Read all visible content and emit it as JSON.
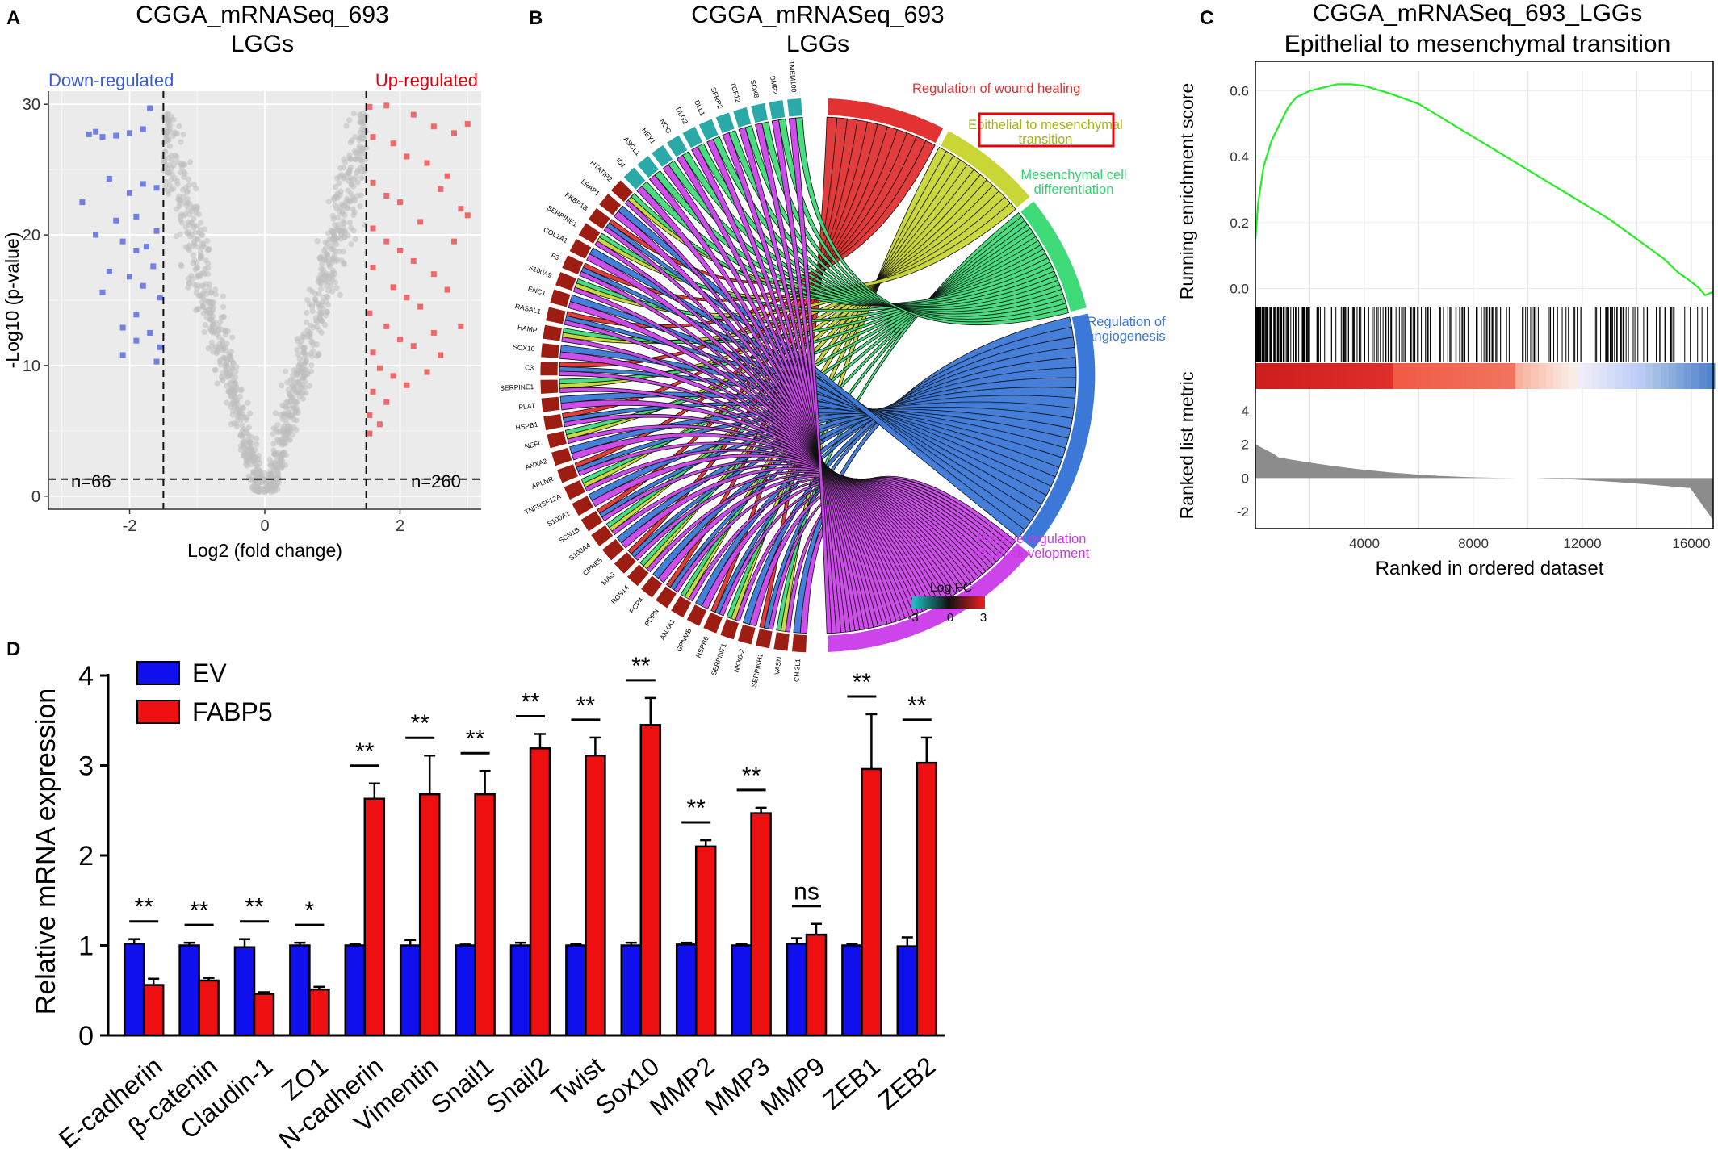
{
  "panels": {
    "A": {
      "letter": "A",
      "title_line1": "CGGA_mRNASeq_693",
      "title_line2": "LGGs",
      "down_label": "Down-regulated",
      "up_label": "Up-regulated",
      "n_down": "n=66",
      "n_up": "n=260",
      "colors": {
        "down": "#5b6ce0",
        "up": "#f0484a",
        "ns": "#bdbdbd",
        "background": "#ebebeb"
      }
    },
    "B": {
      "letter": "B",
      "title_line1": "CGGA_mRNASeq_693",
      "title_line2": "LGGs",
      "legend_title": "Log FC",
      "legend_ticks": [
        "-3",
        "0",
        "3"
      ],
      "highlight_color": "#e8000b"
    },
    "C": {
      "letter": "C",
      "title_line1": "CGGA_mRNASeq_693_LGGs",
      "title_line2": "Epithelial to mesenchymal transition",
      "curve_color": "#22ee22"
    },
    "D": {
      "letter": "D",
      "colors": {
        "EV": "#1010ee",
        "FABP5": "#ee1010"
      }
    }
  },
  "chart_data": [
    {
      "panel": "A",
      "type": "scatter",
      "xlabel": "Log2 (fold change)",
      "ylabel": "-Log10 (p-value)",
      "xlim": [
        -3.2,
        3.2
      ],
      "ylim": [
        -1,
        31
      ],
      "xticks": [
        -2,
        0,
        2
      ],
      "yticks": [
        0,
        10,
        20,
        30
      ],
      "thresholds": {
        "log2fc": [
          -1.5,
          1.5
        ],
        "neg_log10_p": 1.3
      },
      "grid": true,
      "counts": {
        "down": 66,
        "up": 260
      },
      "series": [
        {
          "name": "Down-regulated",
          "points": [
            [
              -2.6,
              27.7
            ],
            [
              -2.5,
              27.9
            ],
            [
              -2.4,
              27.5
            ],
            [
              -2.2,
              27.6
            ],
            [
              -2.0,
              27.8
            ],
            [
              -1.8,
              28.1
            ],
            [
              -1.7,
              29.7
            ],
            [
              -2.7,
              22.5
            ],
            [
              -2.3,
              24.3
            ],
            [
              -2.2,
              21.1
            ],
            [
              -2.0,
              23.2
            ],
            [
              -1.9,
              21.4
            ],
            [
              -1.8,
              23.9
            ],
            [
              -1.6,
              23.6
            ],
            [
              -2.5,
              20.0
            ],
            [
              -2.1,
              19.5
            ],
            [
              -1.9,
              18.8
            ],
            [
              -1.75,
              19.1
            ],
            [
              -1.6,
              20.3
            ],
            [
              -2.4,
              15.6
            ],
            [
              -2.3,
              17.2
            ],
            [
              -2.0,
              16.8
            ],
            [
              -1.8,
              16.1
            ],
            [
              -1.65,
              17.6
            ],
            [
              -1.55,
              15.2
            ],
            [
              -2.1,
              12.9
            ],
            [
              -1.9,
              13.9
            ],
            [
              -1.7,
              12.5
            ],
            [
              -1.55,
              11.4
            ],
            [
              -2.1,
              10.8
            ],
            [
              -1.9,
              11.9
            ],
            [
              -1.6,
              10.3
            ]
          ]
        },
        {
          "name": "Up-regulated",
          "points": [
            [
              1.55,
              29.8
            ],
            [
              1.8,
              29.9
            ],
            [
              2.2,
              29.2
            ],
            [
              2.5,
              28.3
            ],
            [
              2.8,
              27.8
            ],
            [
              3.0,
              28.5
            ],
            [
              1.6,
              27.5
            ],
            [
              1.9,
              27.0
            ],
            [
              2.1,
              26.0
            ],
            [
              2.4,
              25.5
            ],
            [
              2.7,
              24.5
            ],
            [
              1.6,
              24.0
            ],
            [
              1.8,
              23.0
            ],
            [
              2.0,
              22.5
            ],
            [
              2.3,
              21.0
            ],
            [
              2.6,
              23.5
            ],
            [
              2.9,
              22.0
            ],
            [
              1.6,
              20.5
            ],
            [
              1.8,
              19.5
            ],
            [
              2.0,
              18.8
            ],
            [
              2.2,
              18.0
            ],
            [
              2.5,
              17.0
            ],
            [
              2.8,
              19.5
            ],
            [
              1.6,
              17.5
            ],
            [
              1.9,
              16.0
            ],
            [
              2.1,
              15.2
            ],
            [
              2.3,
              14.5
            ],
            [
              1.55,
              14.0
            ],
            [
              1.8,
              13.0
            ],
            [
              2.0,
              12.0
            ],
            [
              2.2,
              11.5
            ],
            [
              2.5,
              12.5
            ],
            [
              1.6,
              11.0
            ],
            [
              1.7,
              9.8
            ],
            [
              1.9,
              9.2
            ],
            [
              2.1,
              8.5
            ],
            [
              1.6,
              8.0
            ],
            [
              1.8,
              7.2
            ],
            [
              1.55,
              6.2
            ],
            [
              1.7,
              5.5
            ],
            [
              1.55,
              4.8
            ],
            [
              2.4,
              9.5
            ],
            [
              2.6,
              10.8
            ],
            [
              2.9,
              13.0
            ],
            [
              2.7,
              15.8
            ],
            [
              3.0,
              21.5
            ]
          ]
        }
      ]
    },
    {
      "panel": "B",
      "type": "chord",
      "genes": [
        "CHI3L1",
        "VASN",
        "SERPINH1",
        "NKX6-2",
        "SERPINF1",
        "HSPB6",
        "GPNMB",
        "ANXA1",
        "PDPN",
        "PCP4",
        "RGS14",
        "MAG",
        "CPNE5",
        "S100A4",
        "SCN1B",
        "S100A1",
        "TNFRSF12A",
        "APLNR",
        "ANXA2",
        "NEFL",
        "HSPB1",
        "PLAT",
        "SERPINE1",
        "C3",
        "SOX10",
        "HAMP",
        "RASAL1",
        "ENC1",
        "S100A9",
        "F3",
        "COL1A1",
        "SERPINE1",
        "FKBP1B",
        "LRAP1",
        "HTATIP2",
        "ID1",
        "ASCL1",
        "HEY1",
        "NOG",
        "DLG2",
        "DLL1",
        "SFRP2",
        "TCF12",
        "SOX8",
        "BMP2",
        "TMEM100"
      ],
      "terms": [
        {
          "name": "Regulation of wound healing",
          "color": "#e23232"
        },
        {
          "name": "Epithelial to mesenchymal transition",
          "color": "#c9d636",
          "highlighted": true
        },
        {
          "name": "Mesenchymal cell differentiation",
          "color": "#3fdb79"
        },
        {
          "name": "Regulation of angiogenesis",
          "color": "#3b78d8"
        },
        {
          "name": "Positive regulation of cell development",
          "color": "#cc44ea"
        }
      ],
      "legend": {
        "title": "Log FC",
        "range": [
          -3,
          3
        ]
      }
    },
    {
      "panel": "C",
      "type": "line",
      "title": "CGGA_mRNASeq_693_LGGs",
      "subtitle": "Epithelial to mesenchymal transition",
      "xlabel": "Ranked in ordered dataset",
      "ylabel_top": "Running enrichment score",
      "ylabel_bottom": "Ranked list metric",
      "xlim": [
        0,
        16800
      ],
      "xticks": [
        4000,
        8000,
        12000,
        16000
      ],
      "es_ylim": [
        -0.05,
        0.66
      ],
      "es_yticks": [
        0.0,
        0.2,
        0.4,
        0.6
      ],
      "metric_ylim": [
        -3,
        5
      ],
      "metric_yticks": [
        -2,
        0,
        2,
        4
      ],
      "series": [
        {
          "name": "",
          "x": [
            0,
            100,
            300,
            600,
            900,
            1200,
            1500,
            2000,
            2500,
            3000,
            3500,
            4000,
            5000,
            6000,
            7000,
            8000,
            9000,
            10000,
            11000,
            12000,
            13000,
            14000,
            15000,
            15500,
            16000,
            16300,
            16500,
            16800
          ],
          "y": [
            0.15,
            0.26,
            0.37,
            0.45,
            0.5,
            0.55,
            0.58,
            0.6,
            0.61,
            0.62,
            0.62,
            0.615,
            0.59,
            0.56,
            0.51,
            0.46,
            0.41,
            0.36,
            0.31,
            0.26,
            0.21,
            0.15,
            0.09,
            0.05,
            0.02,
            0.0,
            -0.02,
            -0.01
          ]
        }
      ]
    },
    {
      "panel": "D",
      "type": "bar",
      "ylabel": "Relative mRNA expression",
      "ylim": [
        0,
        4
      ],
      "yticks": [
        0,
        1,
        2,
        3,
        4
      ],
      "categories": [
        "E-cadherin",
        "β-catenin",
        "Claudin-1",
        "ZO1",
        "N-cadherin",
        "Vimentin",
        "Snail1",
        "Snail2",
        "Twist",
        "Sox10",
        "MMP2",
        "MMP3",
        "MMP9",
        "ZEB1",
        "ZEB2"
      ],
      "series": [
        {
          "name": "EV",
          "values": [
            1.02,
            1.0,
            0.98,
            1.0,
            1.0,
            1.0,
            1.0,
            1.0,
            1.0,
            1.0,
            1.01,
            1.0,
            1.02,
            1.0,
            0.99
          ],
          "errors": [
            0.05,
            0.03,
            0.09,
            0.03,
            0.02,
            0.06,
            0.01,
            0.03,
            0.02,
            0.03,
            0.02,
            0.02,
            0.06,
            0.02,
            0.1
          ]
        },
        {
          "name": "FABP5",
          "values": [
            0.56,
            0.61,
            0.46,
            0.51,
            2.63,
            2.68,
            2.68,
            3.19,
            3.11,
            3.45,
            2.1,
            2.47,
            1.12,
            2.96,
            3.03
          ],
          "errors": [
            0.07,
            0.03,
            0.02,
            0.03,
            0.17,
            0.43,
            0.26,
            0.16,
            0.2,
            0.3,
            0.07,
            0.06,
            0.12,
            0.61,
            0.28
          ]
        }
      ],
      "significance": [
        "**",
        "**",
        "**",
        "*",
        "**",
        "**",
        "**",
        "**",
        "**",
        "**",
        "**",
        "**",
        "ns",
        "**",
        "**"
      ],
      "legend": {
        "position": "top-left"
      }
    }
  ]
}
